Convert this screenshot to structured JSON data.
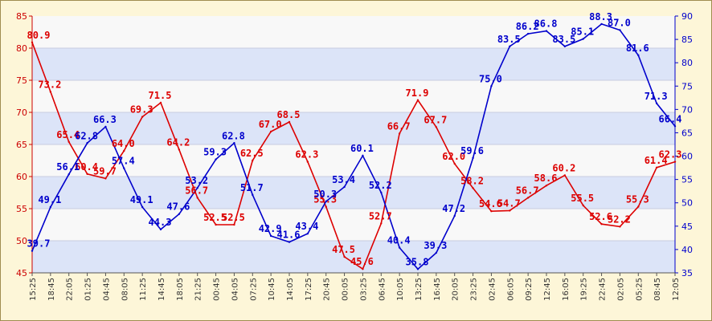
{
  "chart_data": {
    "type": "line",
    "x": [
      "15:25",
      "18:45",
      "22:05",
      "01:25",
      "04:45",
      "08:05",
      "11:25",
      "14:45",
      "18:05",
      "21:25",
      "00:45",
      "04:05",
      "07:25",
      "10:45",
      "14:05",
      "17:25",
      "20:45",
      "00:05",
      "03:25",
      "06:45",
      "10:05",
      "13:25",
      "16:45",
      "20:05",
      "23:25",
      "02:45",
      "06:05",
      "09:25",
      "12:45",
      "16:05",
      "19:25",
      "22:45",
      "02:05",
      "05:25",
      "08:45",
      "12:05"
    ],
    "ylim_left": [
      45,
      85
    ],
    "ylim_right": [
      35,
      90
    ],
    "yticks_left": [
      45,
      50,
      55,
      60,
      65,
      70,
      75,
      80,
      85
    ],
    "yticks_right": [
      35,
      40,
      45,
      50,
      55,
      60,
      65,
      70,
      75,
      80,
      85,
      90
    ],
    "grid": true,
    "series": [
      {
        "axis": "left",
        "color": "#dd0000",
        "values": [
          80.9,
          73.2,
          65.4,
          60.4,
          59.7,
          64.0,
          69.3,
          71.5,
          64.2,
          56.7,
          52.5,
          52.5,
          62.5,
          67.0,
          68.5,
          62.3,
          55.3,
          47.5,
          45.6,
          52.7,
          66.7,
          71.9,
          67.7,
          62.0,
          58.2,
          54.6,
          54.7,
          56.7,
          58.6,
          60.2,
          55.5,
          52.6,
          52.2,
          55.3,
          61.4,
          62.3
        ]
      },
      {
        "axis": "right",
        "color": "#0000cc",
        "values": [
          39.7,
          49.1,
          56.1,
          62.8,
          66.3,
          57.4,
          49.1,
          44.3,
          47.6,
          53.2,
          59.3,
          62.8,
          51.7,
          42.9,
          41.6,
          43.4,
          50.3,
          53.4,
          60.1,
          52.2,
          40.4,
          35.8,
          39.3,
          47.2,
          59.6,
          75.0,
          83.5,
          86.2,
          86.8,
          83.5,
          85.1,
          88.3,
          87.0,
          81.6,
          71.3,
          66.4
        ]
      }
    ]
  }
}
